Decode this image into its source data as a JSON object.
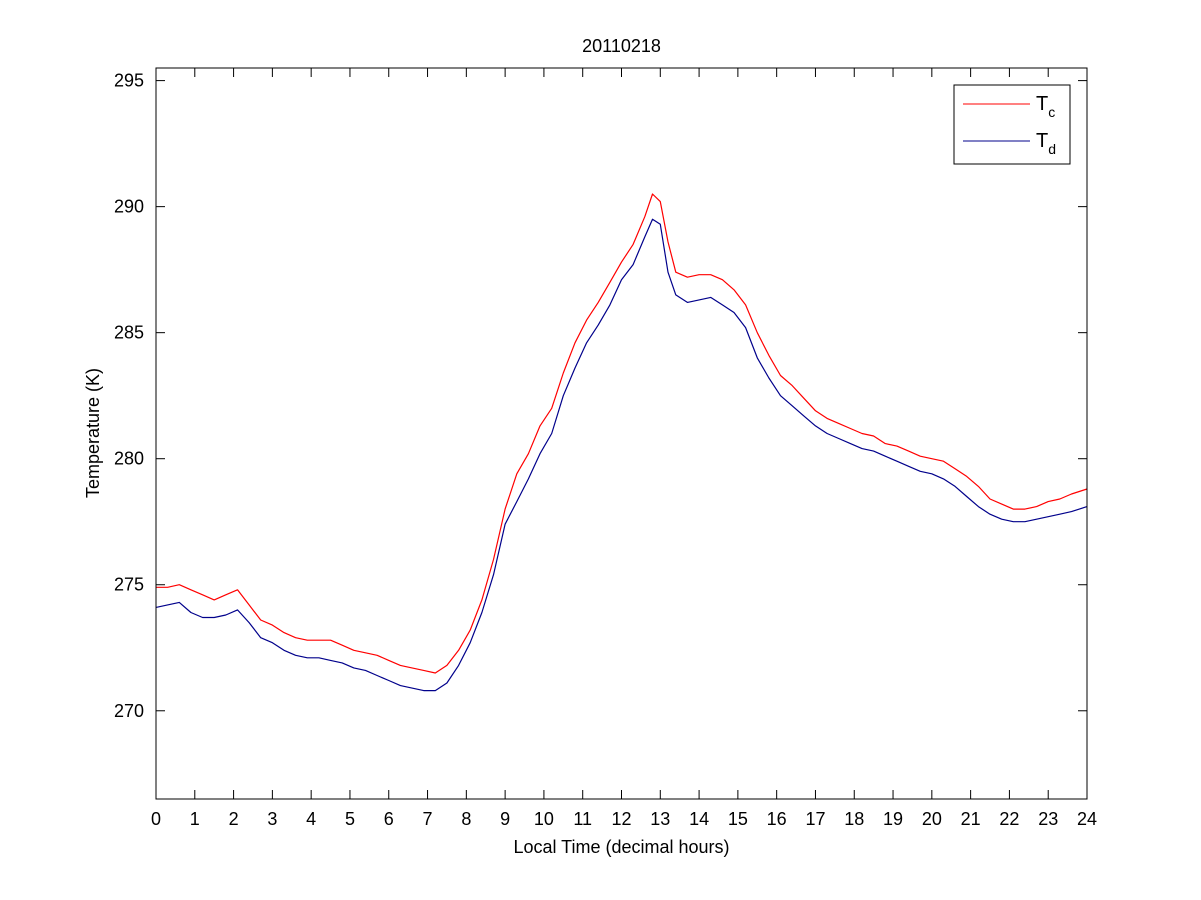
{
  "chart_data": {
    "type": "line",
    "title": "20110218",
    "xlabel": "Local Time (decimal hours)",
    "ylabel": "Temperature (K)",
    "xlim": [
      0,
      24
    ],
    "ylim": [
      266.5,
      295.5
    ],
    "xticks": [
      0,
      1,
      2,
      3,
      4,
      5,
      6,
      7,
      8,
      9,
      10,
      11,
      12,
      13,
      14,
      15,
      16,
      17,
      18,
      19,
      20,
      21,
      22,
      23,
      24
    ],
    "yticks": [
      270,
      275,
      280,
      285,
      290,
      295
    ],
    "grid": false,
    "legend_position": "top-right",
    "series": [
      {
        "name": "Tc",
        "legend_main": "T",
        "legend_sub": "c",
        "color": "#ff0000",
        "x": [
          0,
          0.3,
          0.6,
          0.9,
          1.2,
          1.5,
          1.8,
          2.1,
          2.4,
          2.7,
          3.0,
          3.3,
          3.6,
          3.9,
          4.2,
          4.5,
          4.8,
          5.1,
          5.4,
          5.7,
          6.0,
          6.3,
          6.6,
          6.9,
          7.2,
          7.5,
          7.8,
          8.1,
          8.4,
          8.7,
          9.0,
          9.3,
          9.6,
          9.9,
          10.2,
          10.5,
          10.8,
          11.1,
          11.4,
          11.7,
          12.0,
          12.3,
          12.6,
          12.8,
          13.0,
          13.2,
          13.4,
          13.7,
          14.0,
          14.3,
          14.6,
          14.9,
          15.2,
          15.5,
          15.8,
          16.1,
          16.4,
          16.7,
          17.0,
          17.3,
          17.6,
          17.9,
          18.2,
          18.5,
          18.8,
          19.1,
          19.4,
          19.7,
          20.0,
          20.3,
          20.6,
          20.9,
          21.2,
          21.5,
          21.8,
          22.1,
          22.4,
          22.7,
          23.0,
          23.3,
          23.6,
          24.0
        ],
        "y": [
          274.9,
          274.9,
          275.0,
          274.8,
          274.6,
          274.4,
          274.6,
          274.8,
          274.2,
          273.6,
          273.4,
          273.1,
          272.9,
          272.8,
          272.8,
          272.8,
          272.6,
          272.4,
          272.3,
          272.2,
          272.0,
          271.8,
          271.7,
          271.6,
          271.5,
          271.8,
          272.4,
          273.2,
          274.4,
          276.0,
          278.0,
          279.4,
          280.2,
          281.3,
          282.0,
          283.4,
          284.6,
          285.5,
          286.2,
          287.0,
          287.8,
          288.5,
          289.6,
          290.5,
          290.2,
          288.6,
          287.4,
          287.2,
          287.3,
          287.3,
          287.1,
          286.7,
          286.1,
          285.0,
          284.1,
          283.3,
          282.9,
          282.4,
          281.9,
          281.6,
          281.4,
          281.2,
          281.0,
          280.9,
          280.6,
          280.5,
          280.3,
          280.1,
          280.0,
          279.9,
          279.6,
          279.3,
          278.9,
          278.4,
          278.2,
          278.0,
          278.0,
          278.1,
          278.3,
          278.4,
          278.6,
          278.8
        ]
      },
      {
        "name": "Td",
        "legend_main": "T",
        "legend_sub": "d",
        "color": "#00008b",
        "x": [
          0,
          0.3,
          0.6,
          0.9,
          1.2,
          1.5,
          1.8,
          2.1,
          2.4,
          2.7,
          3.0,
          3.3,
          3.6,
          3.9,
          4.2,
          4.5,
          4.8,
          5.1,
          5.4,
          5.7,
          6.0,
          6.3,
          6.6,
          6.9,
          7.2,
          7.5,
          7.8,
          8.1,
          8.4,
          8.7,
          9.0,
          9.3,
          9.6,
          9.9,
          10.2,
          10.5,
          10.8,
          11.1,
          11.4,
          11.7,
          12.0,
          12.3,
          12.6,
          12.8,
          13.0,
          13.2,
          13.4,
          13.7,
          14.0,
          14.3,
          14.6,
          14.9,
          15.2,
          15.5,
          15.8,
          16.1,
          16.4,
          16.7,
          17.0,
          17.3,
          17.6,
          17.9,
          18.2,
          18.5,
          18.8,
          19.1,
          19.4,
          19.7,
          20.0,
          20.3,
          20.6,
          20.9,
          21.2,
          21.5,
          21.8,
          22.1,
          22.4,
          22.7,
          23.0,
          23.3,
          23.6,
          24.0
        ],
        "y": [
          274.1,
          274.2,
          274.3,
          273.9,
          273.7,
          273.7,
          273.8,
          274.0,
          273.5,
          272.9,
          272.7,
          272.4,
          272.2,
          272.1,
          272.1,
          272.0,
          271.9,
          271.7,
          271.6,
          271.4,
          271.2,
          271.0,
          270.9,
          270.8,
          270.8,
          271.1,
          271.8,
          272.7,
          273.9,
          275.4,
          277.4,
          278.3,
          279.2,
          280.2,
          281.0,
          282.5,
          283.6,
          284.6,
          285.3,
          286.1,
          287.1,
          287.7,
          288.8,
          289.5,
          289.3,
          287.4,
          286.5,
          286.2,
          286.3,
          286.4,
          286.1,
          285.8,
          285.2,
          284.0,
          283.2,
          282.5,
          282.1,
          281.7,
          281.3,
          281.0,
          280.8,
          280.6,
          280.4,
          280.3,
          280.1,
          279.9,
          279.7,
          279.5,
          279.4,
          279.2,
          278.9,
          278.5,
          278.1,
          277.8,
          277.6,
          277.5,
          277.5,
          277.6,
          277.7,
          277.8,
          277.9,
          278.1
        ]
      }
    ]
  }
}
